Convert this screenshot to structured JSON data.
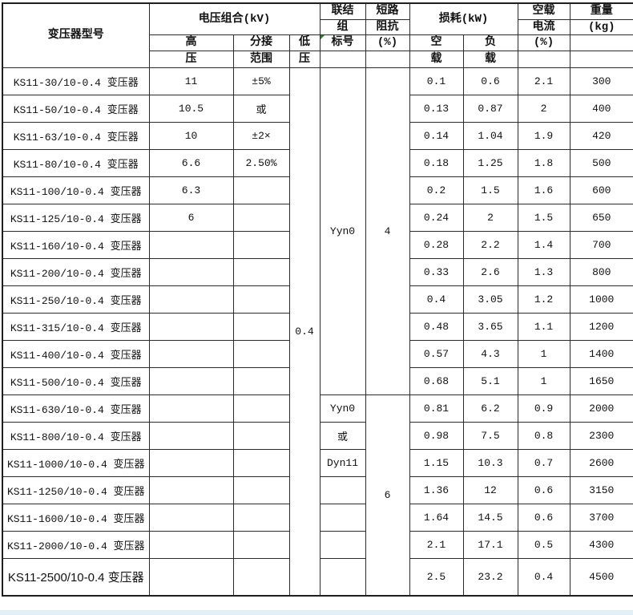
{
  "title": "KS11 transformer specification table",
  "header": {
    "model": "变压器型号",
    "voltage_group": "电压组合(kV)",
    "hv_line1": "高",
    "hv_line2": "压",
    "tap_line1": "分接",
    "tap_line2": "范围",
    "lv_line1": "低",
    "lv_line2": "压",
    "conn_line1": "联结",
    "conn_line2": "组",
    "conn_line3": "标号",
    "imp_line1": "短路",
    "imp_line2": "阻抗",
    "imp_line3": "(%)",
    "loss_group": "损耗(kW)",
    "no_load_line1": "空",
    "no_load_line2": "载",
    "load_line1": "负",
    "load_line2": "载",
    "current_line1": "空载",
    "current_line2": "电流",
    "current_line3": "(%)",
    "weight_line1": "重量",
    "weight_line2": "(kg)"
  },
  "merged": {
    "lv_value": "0.4",
    "conn_rows_1_12": "Yyn0",
    "impedance_rows_1_12": "4",
    "impedance_rows_13_19": "6"
  },
  "colors": {
    "border": "#2b2b2b",
    "marker_green": "#2e7d32",
    "bottom_strip": "#e2f1f5"
  },
  "rows": [
    {
      "model": "KS11-30/10-0.4 变压器",
      "hv": "11",
      "tap": "±5%",
      "no_load_loss": "0.1",
      "load_loss": "0.6",
      "no_load_current": "2.1",
      "weight": "300"
    },
    {
      "model": "KS11-50/10-0.4 变压器",
      "hv": "10.5",
      "tap": "或",
      "no_load_loss": "0.13",
      "load_loss": "0.87",
      "no_load_current": "2",
      "weight": "400"
    },
    {
      "model": "KS11-63/10-0.4 变压器",
      "hv": "10",
      "tap": "±2×",
      "no_load_loss": "0.14",
      "load_loss": "1.04",
      "no_load_current": "1.9",
      "weight": "420"
    },
    {
      "model": "KS11-80/10-0.4 变压器",
      "hv": "6.6",
      "tap": "2.50%",
      "no_load_loss": "0.18",
      "load_loss": "1.25",
      "no_load_current": "1.8",
      "weight": "500"
    },
    {
      "model": "KS11-100/10-0.4 变压器",
      "hv": "6.3",
      "tap": "",
      "no_load_loss": "0.2",
      "load_loss": "1.5",
      "no_load_current": "1.6",
      "weight": "600"
    },
    {
      "model": "KS11-125/10-0.4 变压器",
      "hv": "6",
      "tap": "",
      "no_load_loss": "0.24",
      "load_loss": "2",
      "no_load_current": "1.5",
      "weight": "650"
    },
    {
      "model": "KS11-160/10-0.4 变压器",
      "hv": "",
      "tap": "",
      "no_load_loss": "0.28",
      "load_loss": "2.2",
      "no_load_current": "1.4",
      "weight": "700"
    },
    {
      "model": "KS11-200/10-0.4 变压器",
      "hv": "",
      "tap": "",
      "no_load_loss": "0.33",
      "load_loss": "2.6",
      "no_load_current": "1.3",
      "weight": "800"
    },
    {
      "model": "KS11-250/10-0.4 变压器",
      "hv": "",
      "tap": "",
      "no_load_loss": "0.4",
      "load_loss": "3.05",
      "no_load_current": "1.2",
      "weight": "1000"
    },
    {
      "model": "KS11-315/10-0.4 变压器",
      "hv": "",
      "tap": "",
      "no_load_loss": "0.48",
      "load_loss": "3.65",
      "no_load_current": "1.1",
      "weight": "1200"
    },
    {
      "model": "KS11-400/10-0.4 变压器",
      "hv": "",
      "tap": "",
      "no_load_loss": "0.57",
      "load_loss": "4.3",
      "no_load_current": "1",
      "weight": "1400"
    },
    {
      "model": "KS11-500/10-0.4 变压器",
      "hv": "",
      "tap": "",
      "no_load_loss": "0.68",
      "load_loss": "5.1",
      "no_load_current": "1",
      "weight": "1650"
    },
    {
      "model": "KS11-630/10-0.4 变压器",
      "hv": "",
      "tap": "",
      "conn": "Yyn0",
      "no_load_loss": "0.81",
      "load_loss": "6.2",
      "no_load_current": "0.9",
      "weight": "2000"
    },
    {
      "model": "KS11-800/10-0.4 变压器",
      "hv": "",
      "tap": "",
      "conn": "或",
      "no_load_loss": "0.98",
      "load_loss": "7.5",
      "no_load_current": "0.8",
      "weight": "2300"
    },
    {
      "model": "KS11-1000/10-0.4 变压器",
      "hv": "",
      "tap": "",
      "conn": "Dyn11",
      "no_load_loss": "1.15",
      "load_loss": "10.3",
      "no_load_current": "0.7",
      "weight": "2600"
    },
    {
      "model": "KS11-1250/10-0.4 变压器",
      "hv": "",
      "tap": "",
      "conn": "",
      "no_load_loss": "1.36",
      "load_loss": "12",
      "no_load_current": "0.6",
      "weight": "3150"
    },
    {
      "model": "KS11-1600/10-0.4 变压器",
      "hv": "",
      "tap": "",
      "conn": "",
      "no_load_loss": "1.64",
      "load_loss": "14.5",
      "no_load_current": "0.6",
      "weight": "3700"
    },
    {
      "model": "KS11-2000/10-0.4 变压器",
      "hv": "",
      "tap": "",
      "conn": "",
      "no_load_loss": "2.1",
      "load_loss": "17.1",
      "no_load_current": "0.5",
      "weight": "4300"
    },
    {
      "model": "KS11-2500/10-0.4 变压器",
      "hv": "",
      "tap": "",
      "conn": "",
      "no_load_loss": "2.5",
      "load_loss": "23.2",
      "no_load_current": "0.4",
      "weight": "4500"
    }
  ]
}
